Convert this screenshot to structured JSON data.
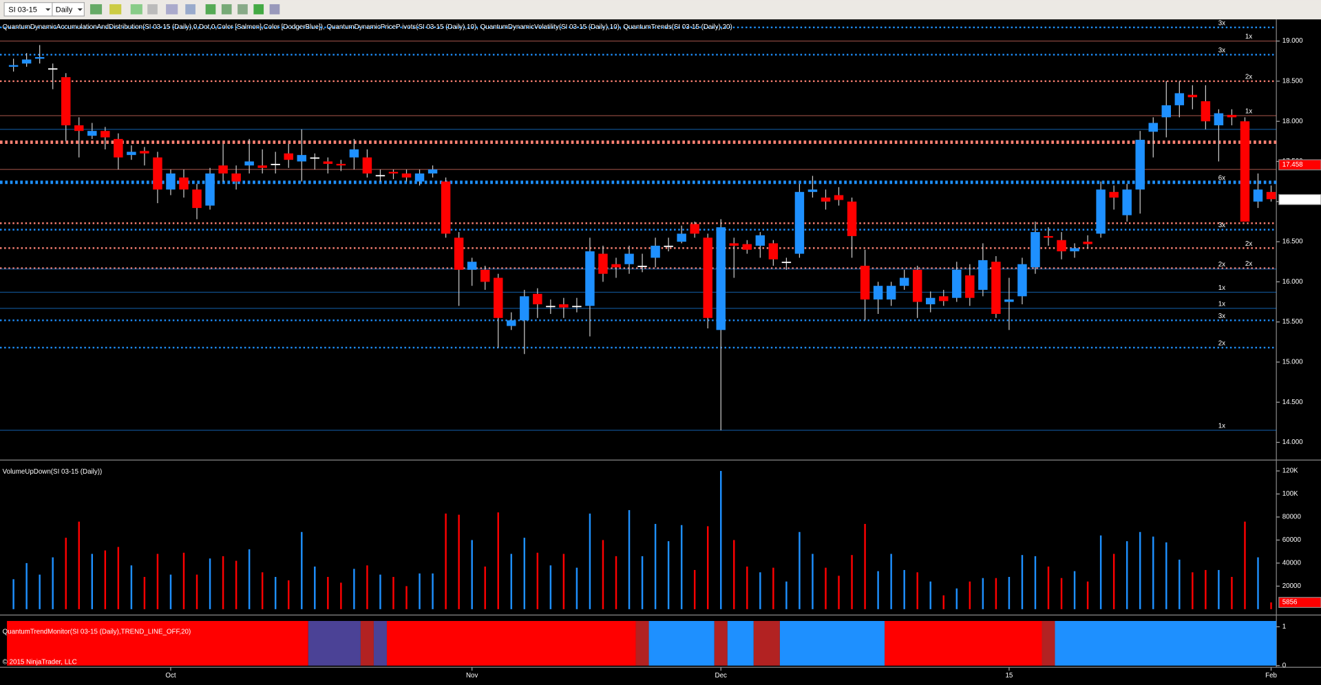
{
  "toolbar": {
    "instrument": "SI 03-15",
    "interval": "Daily"
  },
  "copyright": "© 2015 NinjaTrader, LLC",
  "chart_data": [
    {
      "type": "candlestick",
      "title": "QuantumDynamicAccumulationAndDistribution(SI 03-15 (Daily),0,Dot,0,Color [Salmon],Color [DodgerBlue]), QuantumDynamicPriceP ivots(SI 03-15 (Daily),10), QuantumDynamicVolatility(SI 03-15 (Daily),10), QuantumTrends(SI 03-15 (Daily),20)",
      "up_color": "#1e90ff",
      "down_color": "#ff0000",
      "open": [
        18.68,
        18.72,
        18.78,
        18.66,
        18.55,
        17.95,
        17.82,
        17.88,
        17.78,
        17.58,
        17.63,
        17.55,
        17.15,
        17.3,
        17.15,
        16.95,
        17.45,
        17.35,
        17.45,
        17.45,
        17.47,
        17.6,
        17.5,
        17.55,
        17.5,
        17.47,
        17.55,
        17.55,
        17.33,
        17.37,
        17.35,
        17.25,
        17.35,
        17.25,
        16.55,
        16.15,
        16.15,
        16.05,
        15.45,
        15.52,
        15.85,
        15.7,
        15.72,
        15.7,
        15.7,
        16.35,
        16.22,
        16.22,
        16.2,
        16.3,
        16.45,
        16.5,
        16.72,
        16.55,
        15.4,
        16.48,
        16.47,
        16.45,
        16.48,
        16.25,
        16.35,
        17.12,
        17.05,
        17.08,
        17.0,
        16.2,
        15.78,
        15.78,
        15.95,
        16.15,
        15.72,
        15.82,
        15.8,
        16.08,
        15.9,
        16.25,
        15.75,
        15.82,
        16.18,
        16.57,
        16.52,
        16.38,
        16.5,
        16.6,
        17.12,
        16.83,
        17.15,
        17.87,
        18.05,
        18.2,
        18.33,
        18.25,
        17.95,
        18.08,
        18.0,
        17.0,
        17.12
      ],
      "high": [
        18.78,
        18.85,
        18.95,
        18.72,
        18.6,
        18.05,
        17.98,
        17.93,
        17.85,
        17.7,
        17.68,
        17.62,
        17.4,
        17.4,
        17.22,
        17.42,
        17.72,
        17.45,
        17.78,
        17.65,
        17.62,
        17.72,
        17.9,
        17.6,
        17.55,
        17.52,
        17.78,
        17.65,
        17.4,
        17.4,
        17.4,
        17.4,
        17.45,
        17.3,
        16.62,
        16.3,
        16.2,
        16.1,
        15.62,
        15.9,
        15.92,
        15.78,
        15.8,
        15.8,
        16.55,
        16.45,
        16.3,
        16.45,
        16.35,
        16.55,
        16.55,
        16.7,
        16.75,
        16.6,
        16.78,
        16.55,
        16.52,
        16.62,
        16.52,
        16.3,
        17.22,
        17.32,
        17.15,
        17.18,
        17.05,
        16.4,
        16.0,
        16.0,
        16.15,
        16.2,
        15.88,
        15.9,
        16.25,
        16.22,
        16.48,
        16.32,
        16.05,
        16.3,
        16.75,
        16.68,
        16.62,
        16.48,
        16.58,
        17.25,
        17.2,
        17.22,
        17.88,
        18.05,
        18.5,
        18.5,
        18.45,
        18.45,
        18.15,
        18.15,
        18.05,
        17.35,
        17.2
      ],
      "low": [
        18.62,
        18.68,
        18.72,
        18.4,
        17.75,
        17.55,
        17.78,
        17.65,
        17.4,
        17.52,
        17.45,
        16.98,
        17.08,
        17.05,
        16.78,
        16.9,
        17.25,
        17.15,
        17.35,
        17.35,
        17.35,
        17.42,
        17.25,
        17.4,
        17.35,
        17.38,
        17.4,
        17.3,
        17.25,
        17.28,
        17.25,
        17.2,
        17.3,
        16.55,
        15.7,
        15.95,
        15.9,
        15.18,
        15.4,
        15.1,
        15.55,
        15.6,
        15.55,
        15.62,
        15.32,
        16.0,
        16.05,
        16.1,
        16.12,
        16.18,
        16.38,
        16.48,
        16.55,
        15.42,
        14.15,
        16.05,
        16.35,
        16.3,
        16.2,
        16.15,
        16.3,
        17.05,
        16.9,
        16.95,
        16.3,
        15.52,
        15.6,
        15.7,
        15.9,
        15.55,
        15.62,
        15.7,
        15.75,
        15.7,
        15.82,
        15.55,
        15.4,
        15.72,
        16.1,
        16.45,
        16.28,
        16.3,
        16.42,
        16.55,
        16.9,
        16.75,
        16.85,
        17.55,
        17.8,
        18.05,
        18.15,
        17.9,
        17.5,
        17.95,
        16.75,
        16.92,
        17.0
      ],
      "close": [
        18.7,
        18.77,
        18.8,
        18.66,
        17.95,
        17.88,
        17.88,
        17.8,
        17.55,
        17.62,
        17.6,
        17.15,
        17.35,
        17.15,
        16.92,
        17.35,
        17.35,
        17.25,
        17.5,
        17.42,
        17.47,
        17.52,
        17.58,
        17.55,
        17.47,
        17.45,
        17.65,
        17.35,
        17.33,
        17.35,
        17.3,
        17.35,
        17.4,
        16.6,
        16.15,
        16.25,
        16.0,
        15.55,
        15.52,
        15.82,
        15.72,
        15.7,
        15.68,
        15.7,
        16.38,
        16.1,
        16.18,
        16.35,
        16.2,
        16.45,
        16.45,
        16.6,
        16.6,
        15.55,
        16.68,
        16.45,
        16.4,
        16.58,
        16.28,
        16.25,
        17.12,
        17.15,
        17.0,
        17.02,
        16.57,
        15.78,
        15.95,
        15.95,
        16.05,
        15.75,
        15.8,
        15.76,
        16.15,
        15.8,
        16.27,
        15.6,
        15.78,
        16.22,
        16.62,
        16.55,
        16.38,
        16.42,
        16.47,
        17.15,
        17.05,
        17.15,
        17.77,
        17.98,
        18.2,
        18.35,
        18.3,
        18.0,
        18.1,
        18.05,
        16.75,
        17.15,
        17.03
      ],
      "xlim": [
        -1.03,
        96.4
      ],
      "xticks": [
        {
          "value": 12,
          "label": "Oct"
        },
        {
          "value": 35,
          "label": "Nov"
        },
        {
          "value": 54,
          "label": "Dec"
        },
        {
          "value": 76,
          "label": "15"
        },
        {
          "value": 96,
          "label": "Feb"
        }
      ],
      "ylim": [
        13.79,
        19.27
      ],
      "yticks": [
        {
          "value": 14,
          "label": "14.000"
        },
        {
          "value": 14.5,
          "label": "14.500"
        },
        {
          "value": 15,
          "label": "15.000"
        },
        {
          "value": 15.5,
          "label": "15.500"
        },
        {
          "value": 16,
          "label": "16.000"
        },
        {
          "value": 16.5,
          "label": "16.500"
        },
        {
          "value": 17,
          "label": "17.000"
        },
        {
          "value": 17.5,
          "label": "17.500"
        },
        {
          "value": 18,
          "label": "18.000"
        },
        {
          "value": 18.5,
          "label": "18.500"
        },
        {
          "value": 19,
          "label": "19.000"
        }
      ],
      "levels": [
        {
          "value": 19.17,
          "color": "#1e90ff",
          "style": "dotted",
          "label": "3x"
        },
        {
          "value": 19.0,
          "color": "#fa8072",
          "style": "solid",
          "label": "1x"
        },
        {
          "value": 18.83,
          "color": "#1e90ff",
          "style": "dotted",
          "label": "3x"
        },
        {
          "value": 18.5,
          "color": "#fa8072",
          "style": "dotted",
          "label": "2x"
        },
        {
          "value": 18.07,
          "color": "#fa8072",
          "style": "solid",
          "label": "1x"
        },
        {
          "value": 17.9,
          "color": "#1e90ff",
          "style": "solid"
        },
        {
          "value": 17.74,
          "color": "#fa8072",
          "style": "thick"
        },
        {
          "value": 17.4,
          "color": "#fa8072",
          "style": "solid"
        },
        {
          "value": 17.24,
          "color": "#1e90ff",
          "style": "thick",
          "label": "6x"
        },
        {
          "value": 16.73,
          "color": "#fa8072",
          "style": "dotted"
        },
        {
          "value": 16.65,
          "color": "#1e90ff",
          "style": "dotted",
          "label": "3x"
        },
        {
          "value": 16.42,
          "color": "#fa8072",
          "style": "dotted",
          "label": "2x"
        },
        {
          "value": 16.17,
          "color": "#fa8072",
          "style": "dotted",
          "label": "2x"
        },
        {
          "value": 16.16,
          "color": "#1e90ff",
          "style": "solid",
          "label": "2x"
        },
        {
          "value": 15.87,
          "color": "#1e90ff",
          "style": "solid",
          "label": "1x"
        },
        {
          "value": 15.67,
          "color": "#1e90ff",
          "style": "solid",
          "label": "1x"
        },
        {
          "value": 15.52,
          "color": "#1e90ff",
          "style": "dotted",
          "label": "3x"
        },
        {
          "value": 15.18,
          "color": "#1e90ff",
          "style": "dotted",
          "label": "2x"
        },
        {
          "value": 14.15,
          "color": "#1e90ff",
          "style": "solid",
          "label": "1x"
        }
      ],
      "markers": [
        {
          "value": 17.458,
          "color": "#ff0000",
          "text_color": "#ffffff"
        },
        {
          "value": 17.025,
          "color": "#ffffff",
          "text_color": "#000000"
        }
      ]
    },
    {
      "type": "bar",
      "title": "VolumeUpDown(SI 03-15 (Daily))",
      "values": [
        26000,
        40000,
        30000,
        45000,
        62000,
        76000,
        48000,
        51000,
        54000,
        38000,
        28000,
        48000,
        30000,
        49000,
        30000,
        44000,
        46000,
        42000,
        52000,
        32000,
        28000,
        25000,
        67000,
        37000,
        28000,
        23000,
        35000,
        38000,
        30000,
        28000,
        20000,
        31000,
        31000,
        83000,
        82000,
        60000,
        37000,
        84000,
        48000,
        62000,
        49000,
        38000,
        48000,
        36000,
        83000,
        60000,
        46000,
        86000,
        46000,
        74000,
        59000,
        73000,
        34000,
        72000,
        120000,
        60000,
        37000,
        32000,
        36000,
        24000,
        67000,
        48000,
        36000,
        29000,
        47000,
        74000,
        33000,
        48000,
        34000,
        32000,
        24000,
        12000,
        18000,
        24000,
        27000,
        27000,
        28000,
        47000,
        46000,
        37000,
        27000,
        33000,
        24000,
        64000,
        48000,
        59000,
        67000,
        63000,
        58000,
        43000,
        32000,
        34000,
        34000,
        28000,
        76000,
        45000,
        5856
      ],
      "ylim": [
        0,
        128000
      ],
      "yticks": [
        20000,
        40000,
        60000,
        80000,
        {
          "value": 100000,
          "label": "100K"
        },
        {
          "value": 120000,
          "label": "120K"
        }
      ],
      "marker": {
        "value": 5856,
        "color": "#ff0000"
      }
    },
    {
      "type": "band",
      "title": "QuantumTrendMonitor(SI 03-15 (Daily),TREND_LINE_OFF,20)",
      "segments": [
        {
          "color": "#ff0000",
          "bars": 23
        },
        {
          "color": "#4b4296",
          "bars": 4
        },
        {
          "color": "#b22222",
          "bars": 1
        },
        {
          "color": "#4b4296",
          "bars": 1
        },
        {
          "color": "#ff0000",
          "bars": 19
        },
        {
          "color": "#b22222",
          "bars": 1
        },
        {
          "color": "#1e90ff",
          "bars": 5
        },
        {
          "color": "#b22222",
          "bars": 1
        },
        {
          "color": "#1e90ff",
          "bars": 2
        },
        {
          "color": "#b22222",
          "bars": 2
        },
        {
          "color": "#1e90ff",
          "bars": 8
        },
        {
          "color": "#ff0000",
          "bars": 12
        },
        {
          "color": "#b22222",
          "bars": 1
        },
        {
          "color": "#1e90ff",
          "bars": 17
        }
      ],
      "ylim": [
        0,
        1.15
      ],
      "yticks": [
        0,
        1
      ]
    }
  ]
}
